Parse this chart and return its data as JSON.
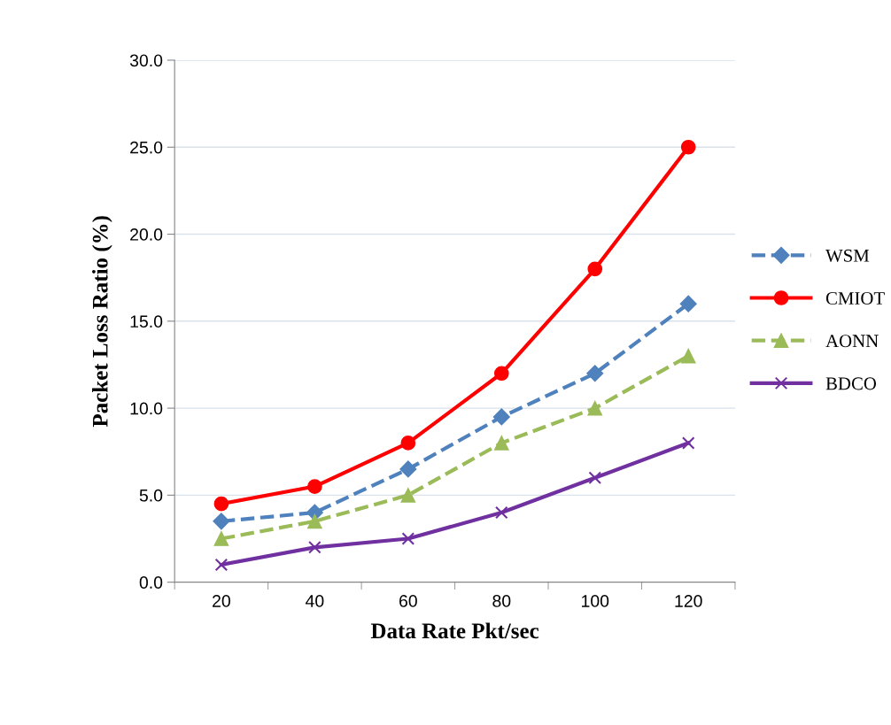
{
  "chart_data": {
    "type": "line",
    "xlabel": "Data Rate Pkt/sec",
    "ylabel": "Packet Loss Ratio (%)",
    "categories": [
      "20",
      "40",
      "60",
      "80",
      "100",
      "120"
    ],
    "series": [
      {
        "name": "WSM",
        "color": "#4f81bd",
        "marker": "diamond",
        "line_style": "dashed",
        "values": [
          3.5,
          4,
          6.5,
          9.5,
          12,
          16
        ]
      },
      {
        "name": "CMIOT",
        "color": "#ff0000",
        "marker": "circle",
        "line_style": "solid",
        "values": [
          4.5,
          5.5,
          8,
          12,
          18,
          25
        ]
      },
      {
        "name": "AONN",
        "color": "#9bbb59",
        "marker": "triangle",
        "line_style": "dashed",
        "values": [
          2.5,
          3.5,
          5,
          8,
          10,
          13
        ]
      },
      {
        "name": "BDCO",
        "color": "#7030a0",
        "marker": "cross",
        "line_style": "solid",
        "values": [
          1,
          2,
          2.5,
          4,
          6,
          8
        ]
      }
    ],
    "ylim": [
      0,
      30
    ],
    "yticks": [
      {
        "value": 0,
        "label": "0.0"
      },
      {
        "value": 5,
        "label": "5.0"
      },
      {
        "value": 10,
        "label": "10.0"
      },
      {
        "value": 15,
        "label": "15.0"
      },
      {
        "value": 20,
        "label": "20.0"
      },
      {
        "value": 25,
        "label": "25.0"
      },
      {
        "value": 30,
        "label": "30.0"
      }
    ],
    "grid": "y",
    "legend": "right"
  }
}
